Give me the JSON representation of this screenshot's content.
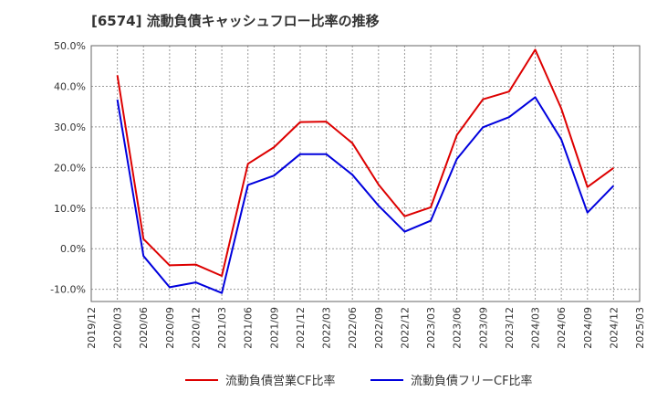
{
  "chart_data": {
    "type": "line",
    "title": "[6574]  流動負債キャッシュフロー比率の推移",
    "xlabel": "",
    "ylabel": "",
    "ylim": [
      -13,
      50
    ],
    "grid": true,
    "legend_placement": "bottom",
    "x_ticks": [
      "2019/12",
      "2020/03",
      "2020/06",
      "2020/09",
      "2020/12",
      "2021/03",
      "2021/06",
      "2021/09",
      "2021/12",
      "2022/03",
      "2022/06",
      "2022/09",
      "2022/12",
      "2023/03",
      "2023/06",
      "2023/09",
      "2023/12",
      "2024/03",
      "2024/06",
      "2024/09",
      "2024/12",
      "2025/03"
    ],
    "y_ticks": [
      {
        "value": 50,
        "label": "50.0%"
      },
      {
        "value": 40,
        "label": "40.0%"
      },
      {
        "value": 30,
        "label": "30.0%"
      },
      {
        "value": 20,
        "label": "20.0%"
      },
      {
        "value": 10,
        "label": "10.0%"
      },
      {
        "value": 0,
        "label": "0.0%"
      },
      {
        "value": -10,
        "label": "-10.0%"
      }
    ],
    "x": [
      "2020/03",
      "2020/06",
      "2020/09",
      "2020/12",
      "2021/03",
      "2021/06",
      "2021/09",
      "2021/12",
      "2022/03",
      "2022/06",
      "2022/09",
      "2022/12",
      "2023/03",
      "2023/06",
      "2023/09",
      "2023/12",
      "2024/03",
      "2024/06",
      "2024/09",
      "2024/12"
    ],
    "series": [
      {
        "name": "流動負債営業CF比率",
        "color": "#dd0000",
        "values": [
          42.7,
          2.4,
          -4.1,
          -3.9,
          -6.7,
          20.9,
          25.0,
          31.2,
          31.3,
          26.0,
          15.8,
          8.0,
          10.2,
          28.0,
          36.8,
          38.7,
          49.0,
          34.5,
          15.2,
          19.9
        ]
      },
      {
        "name": "流動負債フリーCF比率",
        "color": "#0000dd",
        "values": [
          36.7,
          -1.8,
          -9.5,
          -8.3,
          -10.9,
          15.7,
          18.0,
          23.3,
          23.3,
          18.2,
          10.6,
          4.2,
          6.9,
          22.1,
          29.9,
          32.4,
          37.3,
          26.9,
          8.9,
          15.5
        ]
      }
    ]
  }
}
